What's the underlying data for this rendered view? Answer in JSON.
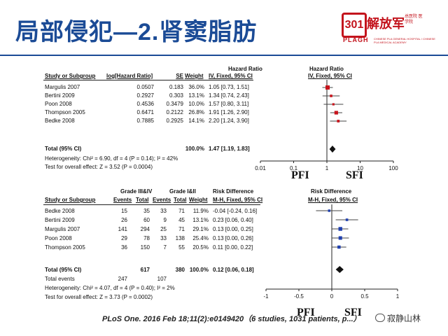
{
  "slide": {
    "title": "局部侵犯—2.肾窦脂肪",
    "logo_badge": "301",
    "logo_name": "解放军",
    "logo_sub_cn": "总医院 医学院",
    "logo_abbr": "PLAGH",
    "logo_abbr_sub": "CHINESE PLA GENERAL HOSPITAL / CHINESE PLA MEDICAL ACADEMY",
    "citation": "PLoS One. 2016 Feb 18;11(2):e0149420（6 studies, 1031 patients, p...）",
    "wechat_label": "寂静山林"
  },
  "meta1": {
    "hr_header": "Hazard Ratio",
    "hr_sub": "IV, Fixed, 95% CI",
    "plot_header": "Hazard Ratio",
    "plot_sub": "IV, Fixed, 95% CI",
    "col_study": "Study or Subgroup",
    "col_loghr": "log[Hazard Ratio]",
    "col_se": "SE",
    "col_weight": "Weight",
    "rows": [
      {
        "study": "Margulis 2007",
        "loghr": "0.0507",
        "se": "0.183",
        "weight": "36.0%",
        "ci": "1.05 [0.73, 1.51]"
      },
      {
        "study": "Bertini 2009",
        "loghr": "0.2927",
        "se": "0.303",
        "weight": "13.1%",
        "ci": "1.34 [0.74, 2.43]"
      },
      {
        "study": "Poon 2008",
        "loghr": "0.4536",
        "se": "0.3479",
        "weight": "10.0%",
        "ci": "1.57 [0.80, 3.11]"
      },
      {
        "study": "Thompson 2005",
        "loghr": "0.6471",
        "se": "0.2122",
        "weight": "26.8%",
        "ci": "1.91 [1.26, 2.90]"
      },
      {
        "study": "Bedke 2008",
        "loghr": "0.7885",
        "se": "0.2925",
        "weight": "14.1%",
        "ci": "2.20 [1.24, 3.90]"
      }
    ],
    "total_label": "Total (95% CI)",
    "total_weight": "100.0%",
    "total_ci": "1.47 [1.19, 1.83]",
    "heterogeneity": "Heterogeneity: Chi² = 6.90, df = 4 (P = 0.14); I² = 42%",
    "overall": "Test for overall effect: Z = 3.52 (P = 0.0004)",
    "ticks": [
      "0.01",
      "0.1",
      "1",
      "10",
      "100"
    ],
    "left_label": "PFI",
    "right_label": "SFI"
  },
  "meta2": {
    "group1_header": "Grade III&IV",
    "group2_header": "Grade I&II",
    "rd_header": "Risk Difference",
    "rd_sub": "M-H, Fixed, 95% CI",
    "plot_header": "Risk Difference",
    "plot_sub": "M-H, Fixed, 95% CI",
    "col_study": "Study or Subgroup",
    "col_events1": "Events",
    "col_total1": "Total",
    "col_events2": "Events",
    "col_total2": "Total",
    "col_weight": "Weight",
    "rows": [
      {
        "study": "Bedke 2008",
        "e1": "15",
        "t1": "35",
        "e2": "33",
        "t2": "71",
        "weight": "11.9%",
        "ci": "-0.04 [-0.24, 0.16]"
      },
      {
        "study": "Bertini 2009",
        "e1": "26",
        "t1": "60",
        "e2": "9",
        "t2": "45",
        "weight": "13.1%",
        "ci": "0.23 [0.06, 0.40]"
      },
      {
        "study": "Margulis 2007",
        "e1": "141",
        "t1": "294",
        "e2": "25",
        "t2": "71",
        "weight": "29.1%",
        "ci": "0.13 [0.00, 0.25]"
      },
      {
        "study": "Poon 2008",
        "e1": "29",
        "t1": "78",
        "e2": "33",
        "t2": "138",
        "weight": "25.4%",
        "ci": "0.13 [0.00, 0.26]"
      },
      {
        "study": "Thompson 2005",
        "e1": "36",
        "t1": "150",
        "e2": "7",
        "t2": "55",
        "weight": "20.5%",
        "ci": "0.11 [0.00, 0.22]"
      }
    ],
    "total_label": "Total (95% CI)",
    "total_t1": "617",
    "total_t2": "380",
    "total_weight": "100.0%",
    "total_ci": "0.12 [0.06, 0.18]",
    "events_label": "Total events",
    "events_e1": "247",
    "events_e2": "107",
    "heterogeneity": "Heterogeneity: Chi² = 4.07, df = 4 (P = 0.40); I² = 2%",
    "overall": "Test for overall effect: Z = 3.73 (P = 0.0002)",
    "ticks": [
      "-1",
      "-0.5",
      "0",
      "0.5",
      "1"
    ],
    "left_label": "PFI",
    "right_label": "SFI"
  },
  "chart_data": [
    {
      "type": "forest",
      "scale": "log",
      "xlim": [
        0.01,
        100
      ],
      "studies": [
        "Margulis 2007",
        "Bertini 2009",
        "Poon 2008",
        "Thompson 2005",
        "Bedke 2008"
      ],
      "estimate": [
        1.05,
        1.34,
        1.57,
        1.91,
        2.2
      ],
      "lower": [
        0.73,
        0.74,
        0.8,
        1.26,
        1.24
      ],
      "upper": [
        1.51,
        2.43,
        3.11,
        2.9,
        3.9
      ],
      "weight": [
        36.0,
        13.1,
        10.0,
        26.8,
        14.1
      ],
      "pooled": {
        "estimate": 1.47,
        "lower": 1.19,
        "upper": 1.83
      },
      "marker_color": "#c8141c",
      "xlabel_left": "PFI",
      "xlabel_right": "SFI"
    },
    {
      "type": "forest",
      "scale": "linear",
      "xlim": [
        -1,
        1
      ],
      "studies": [
        "Bedke 2008",
        "Bertini 2009",
        "Margulis 2007",
        "Poon 2008",
        "Thompson 2005"
      ],
      "estimate": [
        -0.04,
        0.23,
        0.13,
        0.13,
        0.11
      ],
      "lower": [
        -0.24,
        0.06,
        0.0,
        0.0,
        0.0
      ],
      "upper": [
        0.16,
        0.4,
        0.25,
        0.26,
        0.22
      ],
      "weight": [
        11.9,
        13.1,
        29.1,
        25.4,
        20.5
      ],
      "pooled": {
        "estimate": 0.12,
        "lower": 0.06,
        "upper": 0.18
      },
      "marker_color": "#1f3fae",
      "xlabel_left": "PFI",
      "xlabel_right": "SFI"
    }
  ]
}
